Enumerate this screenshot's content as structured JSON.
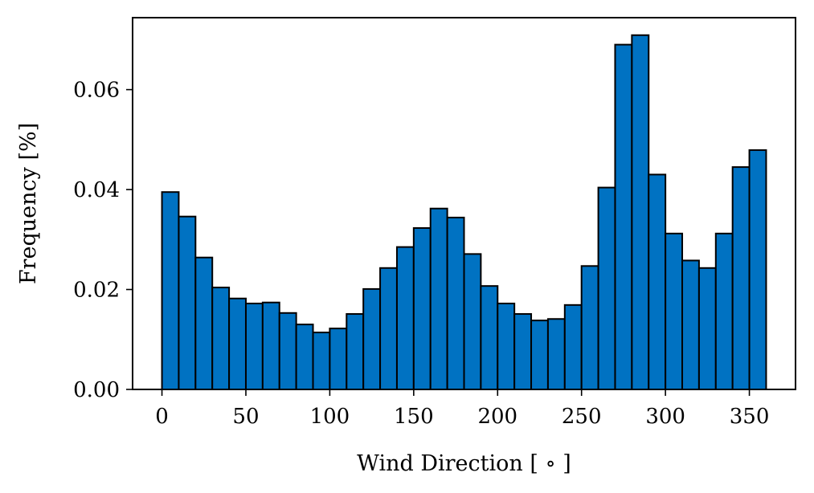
{
  "chart_data": {
    "type": "bar",
    "title": "",
    "xlabel": "Wind Direction [$^\\circ$]",
    "xlabel_display": "Wind Direction [ ∘ ]",
    "ylabel": "Frequency [%]",
    "xlim": [
      -17.5,
      377.5
    ],
    "ylim": [
      0,
      0.0744
    ],
    "xticks": [
      0,
      50,
      100,
      150,
      200,
      250,
      300,
      350
    ],
    "yticks": [
      0.0,
      0.02,
      0.04,
      0.06
    ],
    "ytick_labels": [
      "0.00",
      "0.02",
      "0.04",
      "0.06"
    ],
    "grid": false,
    "legend": "none",
    "bar_color": "#0072C2",
    "edge_color": "#000000",
    "bin_width": 10,
    "bin_starts": [
      0,
      10,
      20,
      30,
      40,
      50,
      60,
      70,
      80,
      90,
      100,
      110,
      120,
      130,
      140,
      150,
      160,
      170,
      180,
      190,
      200,
      210,
      220,
      230,
      240,
      250,
      260,
      270,
      280,
      290,
      300,
      310,
      320,
      330,
      340,
      350
    ],
    "values": [
      0.0395,
      0.0346,
      0.0264,
      0.0204,
      0.0182,
      0.0172,
      0.0174,
      0.0153,
      0.013,
      0.0114,
      0.0122,
      0.0151,
      0.0201,
      0.0243,
      0.0285,
      0.0323,
      0.0362,
      0.0344,
      0.0271,
      0.0207,
      0.0172,
      0.0151,
      0.0138,
      0.0141,
      0.0169,
      0.0247,
      0.0404,
      0.069,
      0.0709,
      0.043,
      0.0312,
      0.0258,
      0.0243,
      0.0312,
      0.0445,
      0.0479
    ]
  }
}
